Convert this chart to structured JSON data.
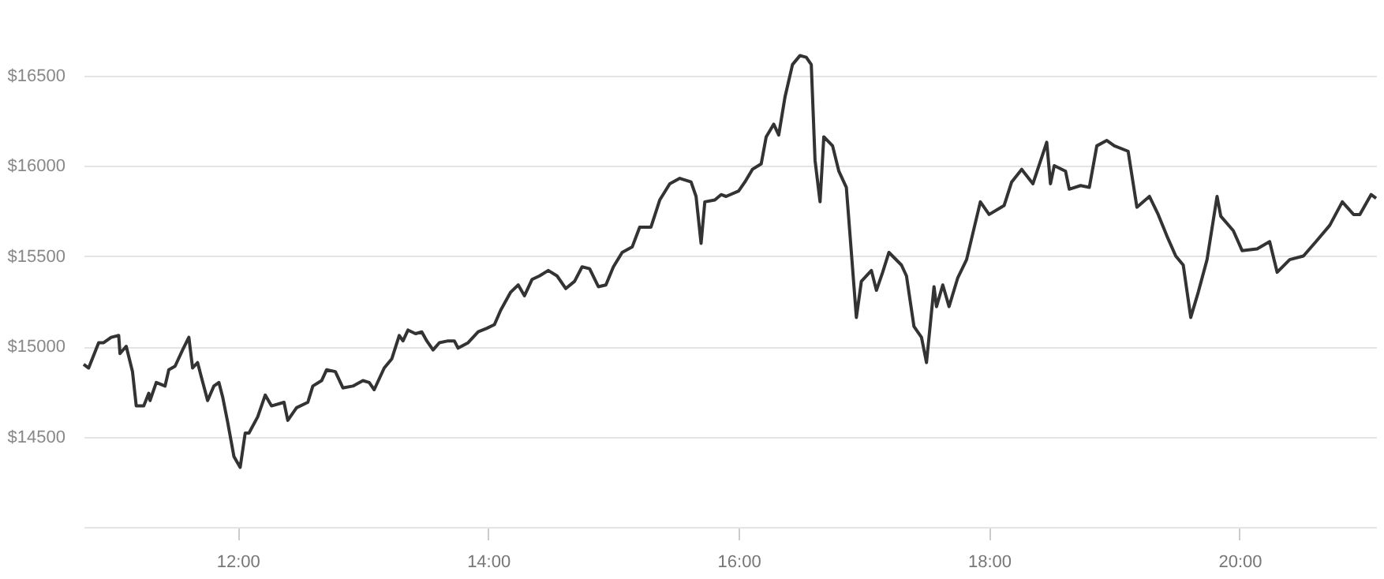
{
  "chart_data": {
    "type": "line",
    "x": [
      10.77,
      10.81,
      10.89,
      10.93,
      10.99,
      11.05,
      11.06,
      11.11,
      11.16,
      11.19,
      11.25,
      11.29,
      11.3,
      11.35,
      11.42,
      11.45,
      11.5,
      11.56,
      11.61,
      11.64,
      11.68,
      11.71,
      11.76,
      11.81,
      11.85,
      11.88,
      11.92,
      11.97,
      12.02,
      12.06,
      12.09,
      12.16,
      12.22,
      12.27,
      12.37,
      12.4,
      12.47,
      12.56,
      12.6,
      12.67,
      12.71,
      12.78,
      12.84,
      12.92,
      13.0,
      13.05,
      13.09,
      13.17,
      13.23,
      13.29,
      13.32,
      13.36,
      13.42,
      13.47,
      13.51,
      13.56,
      13.61,
      13.68,
      13.73,
      13.76,
      13.84,
      13.92,
      13.99,
      14.05,
      14.1,
      14.18,
      14.24,
      14.29,
      14.35,
      14.41,
      14.48,
      14.55,
      14.62,
      14.69,
      14.75,
      14.81,
      14.88,
      14.94,
      15.0,
      15.07,
      15.15,
      15.21,
      15.3,
      15.37,
      15.45,
      15.53,
      15.62,
      15.66,
      15.7,
      15.73,
      15.81,
      15.86,
      15.9,
      16.0,
      16.05,
      16.11,
      16.18,
      16.22,
      16.28,
      16.32,
      16.37,
      16.43,
      16.49,
      16.54,
      16.58,
      16.61,
      16.65,
      16.68,
      16.75,
      16.8,
      16.86,
      16.94,
      16.98,
      17.06,
      17.1,
      17.15,
      17.2,
      17.3,
      17.34,
      17.4,
      17.46,
      17.5,
      17.56,
      17.58,
      17.63,
      17.68,
      17.75,
      17.82,
      17.93,
      18.0,
      18.12,
      18.18,
      18.26,
      18.35,
      18.46,
      18.49,
      18.52,
      18.61,
      18.64,
      18.73,
      18.8,
      18.86,
      18.94,
      19.0,
      19.11,
      19.18,
      19.28,
      19.35,
      19.42,
      19.49,
      19.55,
      19.61,
      19.67,
      19.74,
      19.82,
      19.85,
      19.95,
      20.02,
      20.14,
      20.24,
      20.3,
      20.4,
      20.51,
      20.61,
      20.72,
      20.82,
      20.91,
      20.96,
      21.05,
      21.09
    ],
    "series": [
      {
        "color": "#333333",
        "values": [
          14900,
          14880,
          15020,
          15020,
          15050,
          15060,
          14960,
          15000,
          14860,
          14670,
          14670,
          14740,
          14700,
          14800,
          14780,
          14870,
          14890,
          14980,
          15050,
          14880,
          14910,
          14830,
          14700,
          14780,
          14800,
          14720,
          14580,
          14390,
          14330,
          14520,
          14520,
          14610,
          14730,
          14670,
          14690,
          14590,
          14660,
          14690,
          14780,
          14810,
          14870,
          14860,
          14770,
          14780,
          14810,
          14800,
          14760,
          14880,
          14930,
          15060,
          15030,
          15090,
          15070,
          15080,
          15030,
          14980,
          15020,
          15030,
          15030,
          14990,
          15020,
          15080,
          15100,
          15120,
          15200,
          15300,
          15340,
          15280,
          15370,
          15390,
          15420,
          15390,
          15320,
          15360,
          15440,
          15430,
          15330,
          15340,
          15440,
          15520,
          15550,
          15660,
          15660,
          15810,
          15900,
          15930,
          15910,
          15830,
          15570,
          15800,
          15810,
          15840,
          15830,
          15860,
          15910,
          15980,
          16010,
          16160,
          16230,
          16170,
          16380,
          16560,
          16610,
          16600,
          16560,
          16030,
          15800,
          16160,
          16110,
          15970,
          15880,
          15160,
          15360,
          15420,
          15310,
          15410,
          15520,
          15450,
          15390,
          15110,
          15050,
          14910,
          15330,
          15220,
          15340,
          15220,
          15380,
          15480,
          15800,
          15730,
          15780,
          15910,
          15980,
          15900,
          16130,
          15900,
          16000,
          15970,
          15870,
          15890,
          15880,
          16110,
          16140,
          16110,
          16080,
          15770,
          15830,
          15730,
          15610,
          15500,
          15450,
          15160,
          15300,
          15480,
          15830,
          15720,
          15640,
          15530,
          15540,
          15580,
          15410,
          15480,
          15500,
          15580,
          15670,
          15800,
          15730,
          15730,
          15840,
          15820
        ]
      }
    ],
    "xlim": [
      10.77,
      21.09
    ],
    "ylim": [
      14000,
      16900
    ],
    "xticks": [
      {
        "value": 12,
        "label": "12:00"
      },
      {
        "value": 14,
        "label": "14:00"
      },
      {
        "value": 16,
        "label": "16:00"
      },
      {
        "value": 18,
        "label": "18:00"
      },
      {
        "value": 20,
        "label": "20:00"
      }
    ],
    "yticks": [
      {
        "value": 14500,
        "label": "$14500"
      },
      {
        "value": 15000,
        "label": "$15000"
      },
      {
        "value": 15500,
        "label": "$15500"
      },
      {
        "value": 16000,
        "label": "$16000"
      },
      {
        "value": 16500,
        "label": "$16500"
      }
    ],
    "grid": "y",
    "marker": "none",
    "line_style": "solid",
    "legend": false
  }
}
